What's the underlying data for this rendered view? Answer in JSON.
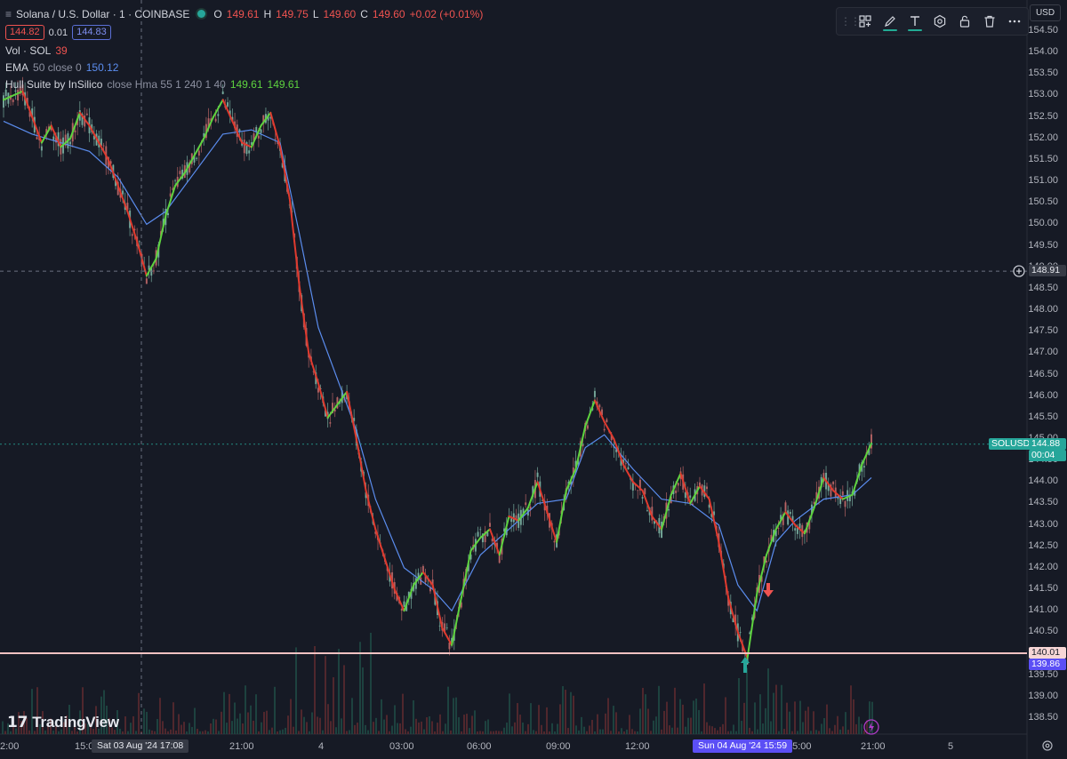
{
  "header": {
    "menu_icon": "menu-lines-icon",
    "symbol_title": "Solana / U.S. Dollar · 1 · COINBASE",
    "ohlc": [
      {
        "k": "O",
        "v": "149.61"
      },
      {
        "k": "H",
        "v": "149.75"
      },
      {
        "k": "L",
        "v": "149.60"
      },
      {
        "k": "C",
        "v": "149.60"
      }
    ],
    "change": "+0.02 (+0.01%)",
    "bid": "144.82",
    "spread": "0.01",
    "ask": "144.83"
  },
  "indicators": [
    {
      "name": "Vol · SOL",
      "params": "",
      "values": [
        "39"
      ],
      "colors": [
        "#ef5350"
      ]
    },
    {
      "name": "EMA",
      "params": "50 close 0",
      "values": [
        "150.12"
      ],
      "colors": [
        "#5b8def"
      ]
    },
    {
      "name": "Hull Suite by InSilico",
      "params": "close Hma 55 1 240 1 40",
      "values": [
        "149.61",
        "149.61"
      ],
      "colors": [
        "#5ed33f",
        "#5ed33f"
      ]
    }
  ],
  "drawing_toolbar": {
    "tools": [
      "template-icon",
      "pencil-icon",
      "text-icon",
      "settings-icon",
      "lock-icon",
      "trash-icon",
      "more-icon"
    ],
    "accent": "#22ab94"
  },
  "currency": "USD",
  "price_axis": [
    "154.50",
    "154.00",
    "153.50",
    "153.00",
    "152.50",
    "152.00",
    "151.50",
    "151.00",
    "150.50",
    "150.00",
    "149.50",
    "149.00",
    "148.50",
    "148.00",
    "147.50",
    "147.00",
    "146.50",
    "146.00",
    "145.50",
    "145.00",
    "144.50",
    "144.00",
    "143.50",
    "143.00",
    "142.50",
    "142.00",
    "141.50",
    "141.00",
    "140.50",
    "140.00",
    "139.50",
    "139.00",
    "138.50"
  ],
  "time_axis": [
    "2:00",
    "15:00",
    "21:00",
    "4",
    "03:00",
    "06:00",
    "09:00",
    "12:00",
    "15:00",
    "21:00",
    "5"
  ],
  "crosshair": {
    "price": "148.91",
    "date_label": "Sat 03 Aug '24",
    "time_label": "17:08"
  },
  "cursor_time": {
    "date_label": "Sun 04 Aug '24",
    "time_label": "15:59"
  },
  "last_price": {
    "symbol_tag": "SOLUSD",
    "price": "144.88",
    "countdown": "00:04",
    "color": "#26a69a"
  },
  "horizontal_line": {
    "price": "140.01",
    "color": "#f2c2c2"
  },
  "low_marker": {
    "price": "139.86",
    "color": "#5b4ff5"
  },
  "colors": {
    "background": "#161a25",
    "up": "#26a69a",
    "down": "#ef5350",
    "hull_up": "#5ed33f",
    "hull_down": "#e03a2e",
    "ema": "#5b8def"
  },
  "chart_data": {
    "type": "line",
    "title": "Solana / U.S. Dollar · 1 · COINBASE",
    "xlabel": "",
    "ylabel": "",
    "ylim": [
      138.2,
      154.8
    ],
    "x_ticks": [
      "2:00",
      "15:00",
      "21:00",
      "4",
      "03:00",
      "06:00",
      "09:00",
      "12:00",
      "15:00",
      "21:00",
      "5"
    ],
    "series": [
      {
        "name": "Hull Suite by InSilico",
        "values": [
          [
            0,
            152.9
          ],
          [
            4,
            153.1
          ],
          [
            6,
            152.5
          ],
          [
            8,
            151.9
          ],
          [
            10,
            152.3
          ],
          [
            12,
            151.8
          ],
          [
            14,
            152.0
          ],
          [
            16,
            152.6
          ],
          [
            18,
            152.3
          ],
          [
            20,
            151.9
          ],
          [
            22,
            151.5
          ],
          [
            24,
            150.9
          ],
          [
            26,
            150.3
          ],
          [
            28,
            149.6
          ],
          [
            30,
            148.8
          ],
          [
            32,
            149.2
          ],
          [
            34,
            150.2
          ],
          [
            36,
            150.9
          ],
          [
            38,
            151.2
          ],
          [
            40,
            151.6
          ],
          [
            42,
            152.0
          ],
          [
            44,
            152.5
          ],
          [
            46,
            152.9
          ],
          [
            48,
            152.4
          ],
          [
            50,
            151.9
          ],
          [
            52,
            151.8
          ],
          [
            54,
            152.3
          ],
          [
            56,
            152.6
          ],
          [
            58,
            151.8
          ],
          [
            60,
            150.6
          ],
          [
            61,
            149.6
          ],
          [
            62,
            148.6
          ],
          [
            64,
            147.0
          ],
          [
            66,
            146.3
          ],
          [
            68,
            145.5
          ],
          [
            70,
            145.8
          ],
          [
            72,
            146.1
          ],
          [
            74,
            145.0
          ],
          [
            76,
            143.8
          ],
          [
            78,
            142.9
          ],
          [
            80,
            142.2
          ],
          [
            82,
            141.5
          ],
          [
            84,
            141.0
          ],
          [
            86,
            141.6
          ],
          [
            88,
            141.9
          ],
          [
            90,
            141.6
          ],
          [
            92,
            140.6
          ],
          [
            94,
            140.2
          ],
          [
            96,
            141.3
          ],
          [
            98,
            142.4
          ],
          [
            100,
            142.7
          ],
          [
            102,
            142.9
          ],
          [
            104,
            142.3
          ],
          [
            106,
            143.2
          ],
          [
            108,
            143.1
          ],
          [
            110,
            143.4
          ],
          [
            112,
            144.0
          ],
          [
            114,
            143.3
          ],
          [
            116,
            142.6
          ],
          [
            118,
            143.8
          ],
          [
            120,
            144.3
          ],
          [
            122,
            145.3
          ],
          [
            124,
            145.9
          ],
          [
            126,
            145.4
          ],
          [
            128,
            145.0
          ],
          [
            130,
            144.4
          ],
          [
            132,
            144.0
          ],
          [
            134,
            143.8
          ],
          [
            136,
            143.2
          ],
          [
            138,
            142.9
          ],
          [
            140,
            143.7
          ],
          [
            142,
            144.2
          ],
          [
            144,
            143.5
          ],
          [
            146,
            143.9
          ],
          [
            148,
            143.6
          ],
          [
            150,
            142.6
          ],
          [
            152,
            141.3
          ],
          [
            154,
            140.5
          ],
          [
            156,
            139.9
          ],
          [
            158,
            141.4
          ],
          [
            160,
            142.3
          ],
          [
            162,
            142.9
          ],
          [
            164,
            143.3
          ],
          [
            166,
            143.0
          ],
          [
            168,
            142.8
          ],
          [
            170,
            143.4
          ],
          [
            172,
            144.1
          ],
          [
            174,
            143.8
          ],
          [
            176,
            143.6
          ],
          [
            178,
            143.7
          ],
          [
            180,
            144.4
          ],
          [
            182,
            144.9
          ]
        ]
      },
      {
        "name": "EMA",
        "values": [
          [
            0,
            152.4
          ],
          [
            6,
            152.1
          ],
          [
            12,
            151.9
          ],
          [
            18,
            151.7
          ],
          [
            24,
            151.1
          ],
          [
            30,
            150.0
          ],
          [
            34,
            150.3
          ],
          [
            40,
            151.2
          ],
          [
            46,
            152.1
          ],
          [
            52,
            152.2
          ],
          [
            58,
            151.9
          ],
          [
            62,
            149.8
          ],
          [
            66,
            147.6
          ],
          [
            70,
            146.4
          ],
          [
            74,
            145.2
          ],
          [
            78,
            143.6
          ],
          [
            84,
            142.0
          ],
          [
            90,
            141.5
          ],
          [
            94,
            141.0
          ],
          [
            100,
            142.3
          ],
          [
            106,
            142.9
          ],
          [
            112,
            143.5
          ],
          [
            118,
            143.6
          ],
          [
            122,
            144.8
          ],
          [
            126,
            145.1
          ],
          [
            132,
            144.3
          ],
          [
            138,
            143.6
          ],
          [
            144,
            143.5
          ],
          [
            150,
            143.0
          ],
          [
            154,
            141.6
          ],
          [
            158,
            141.0
          ],
          [
            162,
            142.6
          ],
          [
            166,
            143.1
          ],
          [
            172,
            143.6
          ],
          [
            178,
            143.7
          ],
          [
            182,
            144.1
          ]
        ]
      }
    ]
  }
}
